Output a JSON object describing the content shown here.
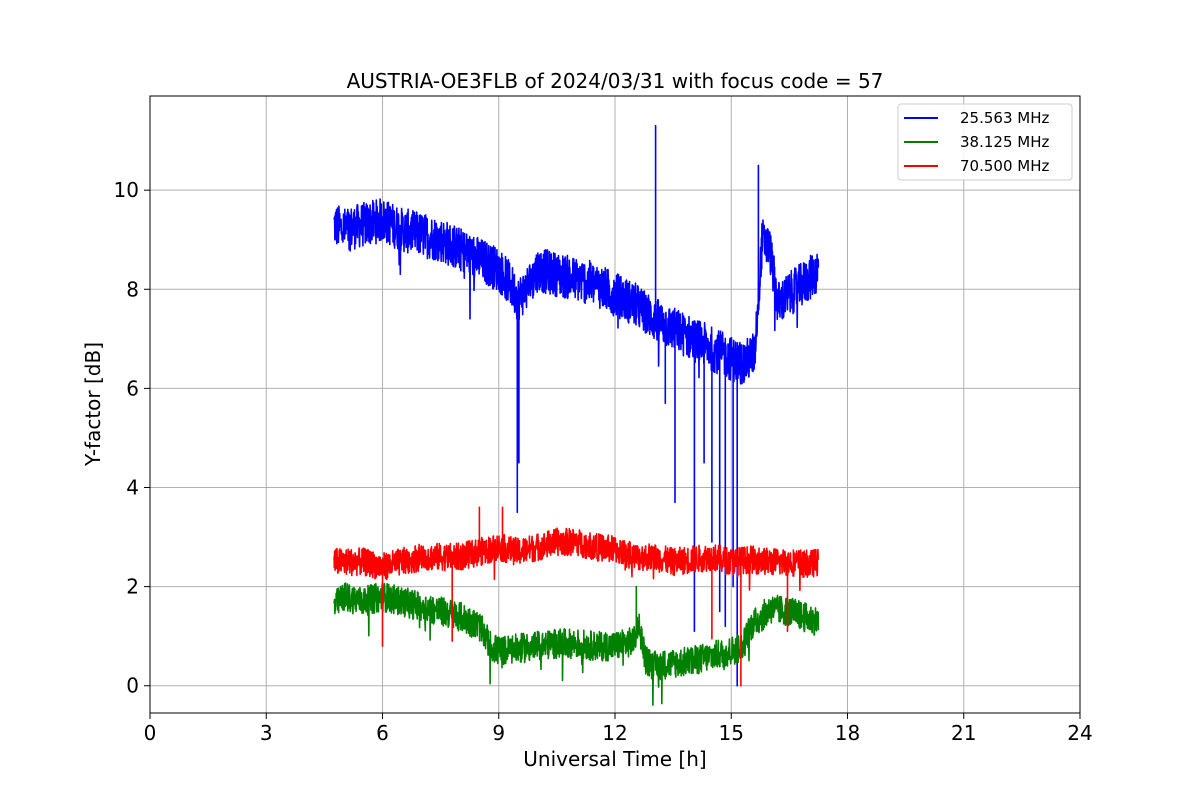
{
  "chart_data": {
    "type": "line",
    "title": "AUSTRIA-OE3FLB of 2024/03/31 with focus code = 57",
    "xlabel": "Universal Time [h]",
    "ylabel": "Y-factor [dB]",
    "xlim": [
      0,
      24
    ],
    "ylim": [
      -0.55,
      11.9
    ],
    "xticks": [
      0,
      3,
      6,
      9,
      12,
      15,
      18,
      21,
      24
    ],
    "yticks": [
      0,
      2,
      4,
      6,
      8,
      10
    ],
    "grid": true,
    "legend_position": "top-right",
    "series": [
      {
        "name": "25.563 MHz",
        "color": "#0000ff",
        "x": [
          4.75,
          5.0,
          5.5,
          6.0,
          6.5,
          7.0,
          7.5,
          8.0,
          8.5,
          9.0,
          9.3,
          9.5,
          9.7,
          10.0,
          10.5,
          11.0,
          11.5,
          12.0,
          12.5,
          13.0,
          13.5,
          14.0,
          14.5,
          15.0,
          15.3,
          15.6,
          15.8,
          16.0,
          16.2,
          16.5,
          17.0,
          17.25
        ],
        "y": [
          9.3,
          9.2,
          9.3,
          9.4,
          9.2,
          9.1,
          9.0,
          8.8,
          8.6,
          8.4,
          8.1,
          7.8,
          8.0,
          8.4,
          8.3,
          8.2,
          8.1,
          7.9,
          7.7,
          7.4,
          7.2,
          7.0,
          6.8,
          6.6,
          6.5,
          6.7,
          9.0,
          8.8,
          7.7,
          7.9,
          8.2,
          8.4
        ],
        "noise": 0.45,
        "dips": [
          [
            9.48,
            3.5
          ],
          [
            9.52,
            4.5
          ],
          [
            13.05,
            11.3
          ],
          [
            13.3,
            5.7
          ],
          [
            13.55,
            3.7
          ],
          [
            14.05,
            1.1
          ],
          [
            14.3,
            4.5
          ],
          [
            14.5,
            2.9
          ],
          [
            14.7,
            1.5
          ],
          [
            14.85,
            1.2
          ],
          [
            15.05,
            2.0
          ],
          [
            15.15,
            0.0
          ],
          [
            15.7,
            10.5
          ]
        ]
      },
      {
        "name": "38.125 MHz",
        "color": "#008000",
        "x": [
          4.75,
          5.0,
          5.5,
          6.0,
          6.5,
          7.0,
          7.5,
          8.0,
          8.5,
          8.8,
          9.0,
          9.5,
          10.0,
          10.5,
          11.0,
          11.5,
          12.0,
          12.5,
          12.6,
          12.8,
          13.0,
          13.5,
          14.0,
          14.5,
          15.0,
          15.3,
          15.5,
          15.8,
          16.0,
          16.5,
          17.0,
          17.25
        ],
        "y": [
          1.6,
          1.8,
          1.7,
          1.8,
          1.7,
          1.6,
          1.5,
          1.4,
          1.2,
          0.8,
          0.7,
          0.75,
          0.8,
          0.85,
          0.85,
          0.8,
          0.8,
          0.9,
          1.3,
          0.5,
          0.4,
          0.45,
          0.5,
          0.6,
          0.7,
          0.8,
          1.2,
          1.4,
          1.55,
          1.5,
          1.35,
          1.3
        ],
        "noise": 0.3,
        "dips": [
          [
            12.55,
            2.0
          ],
          [
            14.9,
            0.4
          ]
        ]
      },
      {
        "name": "70.500 MHz",
        "color": "#ff0000",
        "x": [
          4.75,
          5.0,
          5.5,
          6.0,
          6.5,
          7.0,
          7.5,
          8.0,
          8.5,
          9.0,
          9.5,
          10.0,
          10.5,
          11.0,
          11.5,
          12.0,
          12.5,
          13.0,
          13.5,
          14.0,
          14.5,
          15.0,
          15.5,
          16.0,
          16.5,
          17.0,
          17.25
        ],
        "y": [
          2.5,
          2.5,
          2.5,
          2.4,
          2.5,
          2.6,
          2.6,
          2.6,
          2.7,
          2.8,
          2.7,
          2.8,
          2.9,
          2.9,
          2.8,
          2.75,
          2.6,
          2.6,
          2.5,
          2.55,
          2.6,
          2.5,
          2.55,
          2.5,
          2.5,
          2.45,
          2.5
        ],
        "noise": 0.28,
        "dips": [
          [
            6.0,
            0.8
          ],
          [
            7.8,
            0.9
          ],
          [
            8.5,
            3.6
          ],
          [
            9.1,
            3.6
          ],
          [
            14.5,
            0.95
          ],
          [
            15.25,
            0.0
          ],
          [
            16.45,
            1.1
          ]
        ]
      }
    ]
  }
}
